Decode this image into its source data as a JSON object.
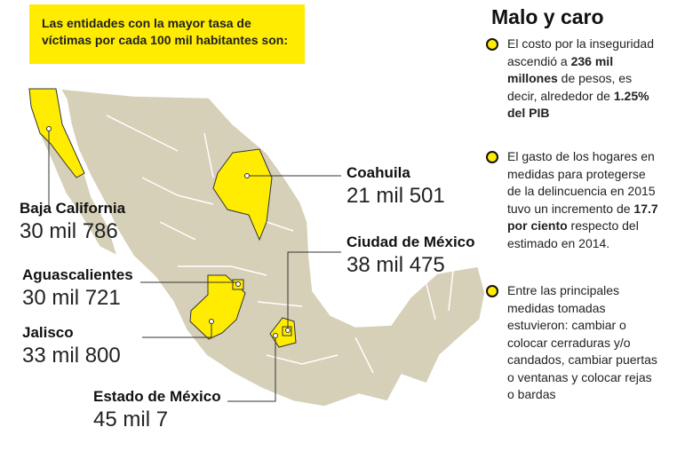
{
  "intro": "Las entidades con la mayor tasa de víctimas por cada 100 mil habitantes son:",
  "states": [
    {
      "name": "Baja California",
      "value": "30 mil 786"
    },
    {
      "name": "Coahuila",
      "value": "21 mil 501"
    },
    {
      "name": "Ciudad de México",
      "value": "38 mil 475"
    },
    {
      "name": "Aguascalientes",
      "value": "30 mil 721"
    },
    {
      "name": "Jalisco",
      "value": "33 mil 800"
    },
    {
      "name": "Estado de México",
      "value": "45 mil 7"
    }
  ],
  "sidebar": {
    "title": "Malo y caro",
    "bullets": [
      [
        {
          "text": "El costo por la inseguridad ascendió a ",
          "bold": false
        },
        {
          "text": "236 mil millones",
          "bold": true
        },
        {
          "text": " de pesos, es decir, alrededor de ",
          "bold": false
        },
        {
          "text": "1.25% del PIB",
          "bold": true
        }
      ],
      [
        {
          "text": "El gasto de los hogares en medidas para protegerse de la delincuencia en 2015 tuvo un incremento de ",
          "bold": false
        },
        {
          "text": "17.7 por ciento",
          "bold": true
        },
        {
          "text": " respecto del estimado en 2014.",
          "bold": false
        }
      ],
      [
        {
          "text": "Entre las principales medidas tomadas estuvieron: cambiar o colocar cerraduras y/o candados, cambiar puertas o ventanas y colocar rejas o bardas",
          "bold": false
        }
      ]
    ]
  }
}
